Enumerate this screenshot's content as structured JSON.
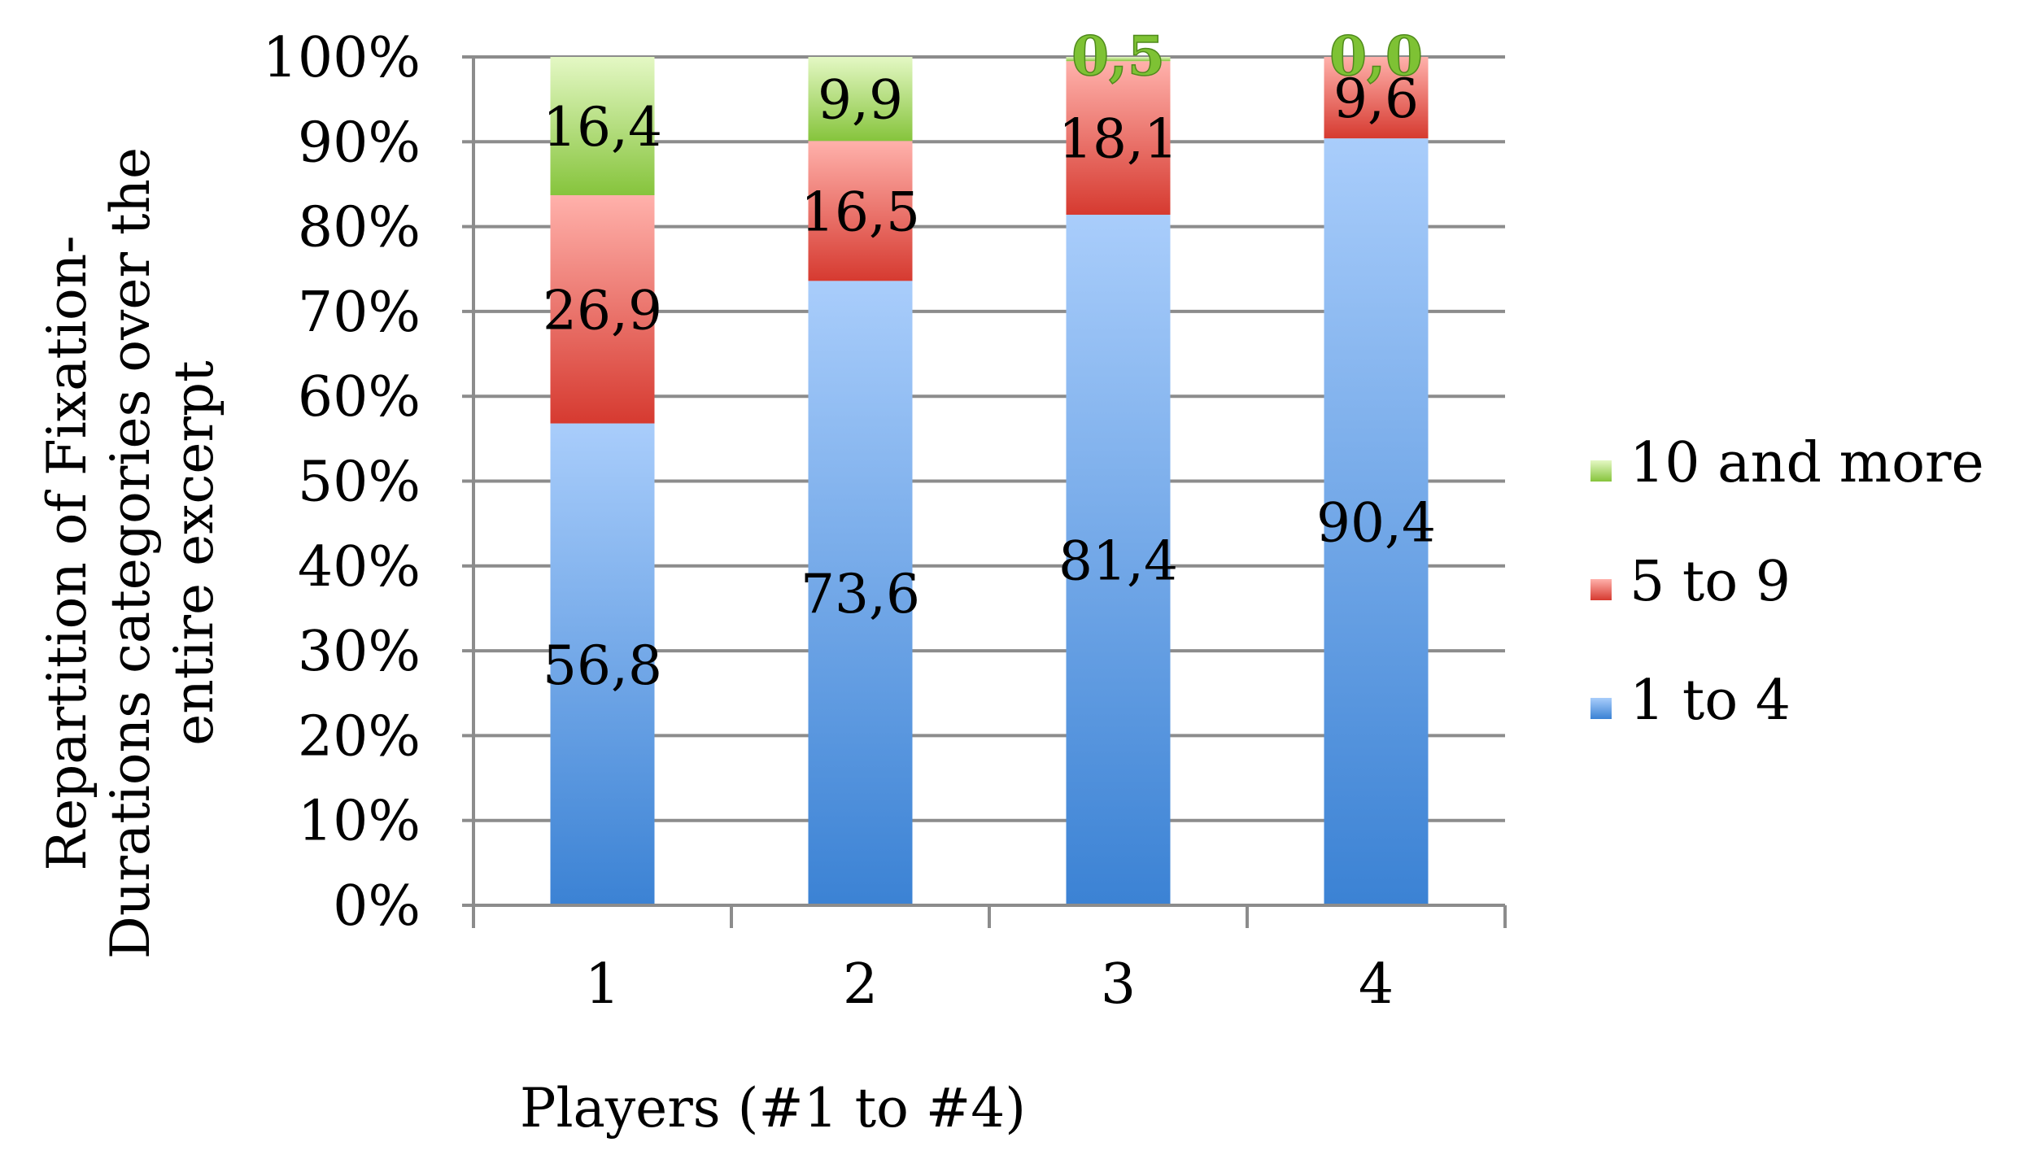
{
  "chart_data": {
    "type": "bar",
    "stacked": true,
    "categories": [
      "1",
      "2",
      "3",
      "4"
    ],
    "series": [
      {
        "name": "1 to 4",
        "values": [
          56.8,
          73.6,
          81.4,
          90.4
        ],
        "labels": [
          "56,8",
          "73,6",
          "81,4",
          "90,4"
        ],
        "color_top": "#a9cdfb",
        "color_bottom": "#3b82d4"
      },
      {
        "name": "5 to 9",
        "values": [
          26.9,
          16.5,
          18.1,
          9.6
        ],
        "labels": [
          "26,9",
          "16,5",
          "18,1",
          "9,6"
        ],
        "color_top": "#ffb1ab",
        "color_bottom": "#d63a30"
      },
      {
        "name": "10 and more",
        "values": [
          16.4,
          9.9,
          0.5,
          0.0
        ],
        "labels": [
          "16,4",
          "9,9",
          "0,5",
          "0,0"
        ],
        "color_top": "#e4f8c4",
        "color_bottom": "#86c43c"
      }
    ],
    "yticks": [
      "0%",
      "10%",
      "20%",
      "30%",
      "40%",
      "50%",
      "60%",
      "70%",
      "80%",
      "90%",
      "100%"
    ],
    "ylim": [
      0,
      100
    ],
    "xlabel": "Players (#1 to #4)",
    "ylabel_lines": [
      "Repartition of Fixation-",
      "Durations categories over the",
      "entire excerpt"
    ],
    "legend_order": [
      "10 and more",
      "5 to 9",
      "1 to 4"
    ],
    "legend_position": "right",
    "grid": true,
    "gridline_color": "#8c8c8c"
  }
}
